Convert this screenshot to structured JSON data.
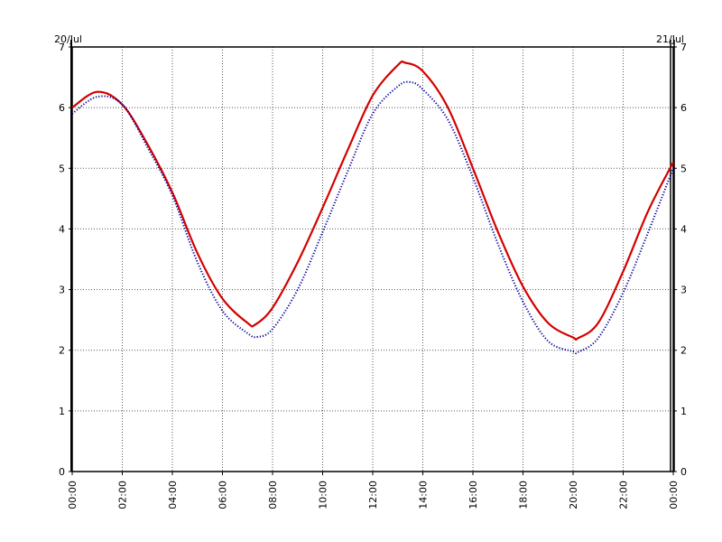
{
  "chart_data": {
    "type": "line",
    "title": "",
    "xlabel": "",
    "ylabel": "",
    "date_left": "20/Jul",
    "date_right": "21/Jul",
    "x_ticks": [
      "00:00",
      "02:00",
      "04:00",
      "06:00",
      "08:00",
      "10:00",
      "12:00",
      "14:00",
      "16:00",
      "18:00",
      "20:00",
      "22:00",
      "00:00"
    ],
    "y_ticks": [
      "0",
      "1",
      "2",
      "3",
      "4",
      "5",
      "6",
      "7"
    ],
    "xlim_hours": [
      0,
      24
    ],
    "ylim": [
      0,
      7
    ],
    "grid": true,
    "series": [
      {
        "color": "#d40000",
        "style": "solid",
        "x_hours": [
          0,
          1,
          2,
          3,
          4,
          5,
          6,
          7,
          7.3,
          8,
          9,
          10,
          11,
          12,
          13,
          13.3,
          14,
          15,
          16,
          17,
          18,
          19,
          20,
          20.2,
          21,
          22,
          23,
          24
        ],
        "values": [
          6.0,
          6.26,
          6.05,
          5.4,
          4.6,
          3.6,
          2.85,
          2.45,
          2.42,
          2.7,
          3.45,
          4.35,
          5.3,
          6.2,
          6.7,
          6.74,
          6.6,
          6.0,
          5.0,
          3.95,
          3.05,
          2.45,
          2.21,
          2.2,
          2.45,
          3.3,
          4.3,
          5.1
        ]
      },
      {
        "color": "#000099",
        "style": "dotted",
        "x_hours": [
          0,
          1,
          2,
          3,
          4,
          5,
          6,
          7,
          7.4,
          8,
          9,
          10,
          11,
          12,
          13,
          13.5,
          14,
          15,
          16,
          17,
          18,
          19,
          20,
          20.2,
          21,
          22,
          23,
          24
        ],
        "values": [
          5.9,
          6.18,
          6.05,
          5.35,
          4.55,
          3.45,
          2.65,
          2.28,
          2.22,
          2.35,
          3.0,
          3.95,
          4.95,
          5.9,
          6.35,
          6.42,
          6.3,
          5.8,
          4.85,
          3.75,
          2.8,
          2.15,
          1.98,
          1.97,
          2.2,
          2.95,
          3.95,
          5.0
        ]
      }
    ]
  }
}
